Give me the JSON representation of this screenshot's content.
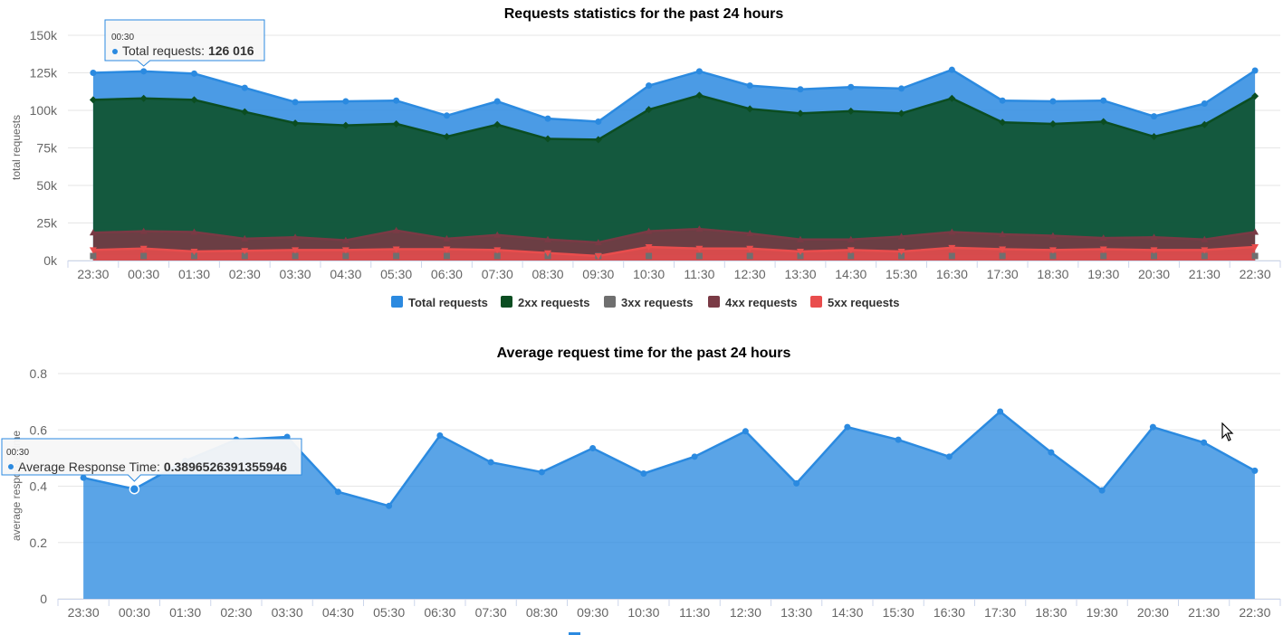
{
  "chart_data": [
    {
      "type": "area",
      "title": "Requests statistics for the past 24 hours",
      "ylabel": "total requests",
      "ylim": [
        0,
        150000
      ],
      "yticks": [
        "0k",
        "25k",
        "50k",
        "75k",
        "100k",
        "125k",
        "150k"
      ],
      "categories": [
        "23:30",
        "00:30",
        "01:30",
        "02:30",
        "03:30",
        "04:30",
        "05:30",
        "06:30",
        "07:30",
        "08:30",
        "09:30",
        "10:30",
        "11:30",
        "12:30",
        "13:30",
        "14:30",
        "15:30",
        "16:30",
        "17:30",
        "18:30",
        "19:30",
        "20:30",
        "21:30",
        "22:30"
      ],
      "series": [
        {
          "name": "Total requests",
          "color": "#2b8ae0",
          "marker": "circle",
          "values": [
            125000,
            126016,
            124500,
            115000,
            105500,
            106000,
            106500,
            96500,
            106000,
            94500,
            92500,
            116500,
            126000,
            116500,
            114000,
            115500,
            114500,
            127000,
            106500,
            106000,
            106500,
            96000,
            104500,
            126500
          ]
        },
        {
          "name": "2xx requests",
          "color": "#0b4d21",
          "marker": "diamond",
          "values": [
            107000,
            108000,
            107000,
            99000,
            91500,
            90000,
            91000,
            82500,
            90500,
            81000,
            80500,
            100500,
            110000,
            101000,
            98000,
            99500,
            98000,
            108000,
            92000,
            91000,
            92500,
            82500,
            90500,
            109500
          ]
        },
        {
          "name": "3xx requests",
          "color": "#6f6f6f",
          "marker": "square",
          "values": [
            3000,
            3000,
            3000,
            3000,
            3000,
            3000,
            3000,
            3000,
            3000,
            3000,
            3000,
            3000,
            3000,
            3000,
            3000,
            3000,
            3000,
            3000,
            3000,
            3000,
            3000,
            3000,
            3000,
            3000
          ]
        },
        {
          "name": "4xx requests",
          "color": "#7a3a45",
          "marker": "triangle",
          "values": [
            18500,
            19500,
            19000,
            14500,
            15500,
            13500,
            20000,
            14500,
            17000,
            14000,
            12000,
            19500,
            21000,
            18000,
            14000,
            14000,
            16000,
            19000,
            17500,
            16500,
            15000,
            15500,
            14000,
            19000
          ]
        },
        {
          "name": "5xx requests",
          "color": "#e94d4d",
          "marker": "triangle-down",
          "values": [
            7000,
            8000,
            6000,
            6500,
            7000,
            7000,
            7500,
            7500,
            7000,
            5000,
            3000,
            9000,
            8000,
            8000,
            6000,
            7000,
            6000,
            8500,
            7500,
            7000,
            7500,
            7000,
            7000,
            9000
          ]
        }
      ],
      "legend": {
        "position": "bottom",
        "items": [
          "Total requests",
          "2xx requests",
          "3xx requests",
          "4xx requests",
          "5xx requests"
        ]
      },
      "tooltip": {
        "header": "00:30",
        "series_name": "Total requests",
        "value": "126 016",
        "category_index": 1
      }
    },
    {
      "type": "area",
      "title": "Average request time for the past 24 hours",
      "ylabel": "average response time",
      "ylim": [
        0,
        0.8
      ],
      "yticks": [
        "0",
        "0.2",
        "0.4",
        "0.6",
        "0.8"
      ],
      "categories": [
        "23:30",
        "00:30",
        "01:30",
        "02:30",
        "03:30",
        "04:30",
        "05:30",
        "06:30",
        "07:30",
        "08:30",
        "09:30",
        "10:30",
        "11:30",
        "12:30",
        "13:30",
        "14:30",
        "15:30",
        "16:30",
        "17:30",
        "18:30",
        "19:30",
        "20:30",
        "21:30",
        "22:30"
      ],
      "series": [
        {
          "name": "Average Response Time",
          "color": "#2b8ae0",
          "values": [
            0.43,
            0.3896526391355946,
            0.49,
            0.565,
            0.575,
            0.38,
            0.33,
            0.58,
            0.485,
            0.45,
            0.535,
            0.445,
            0.505,
            0.595,
            0.41,
            0.61,
            0.565,
            0.505,
            0.665,
            0.52,
            0.385,
            0.61,
            0.555,
            0.455
          ]
        }
      ],
      "tooltip": {
        "header": "00:30",
        "series_name": "Average Response Time",
        "value": "0.3896526391355946",
        "category_index": 1
      }
    }
  ],
  "colors": {
    "grid": "#e6e6e6",
    "axis": "#ccd6eb",
    "tick_text": "#666666"
  }
}
